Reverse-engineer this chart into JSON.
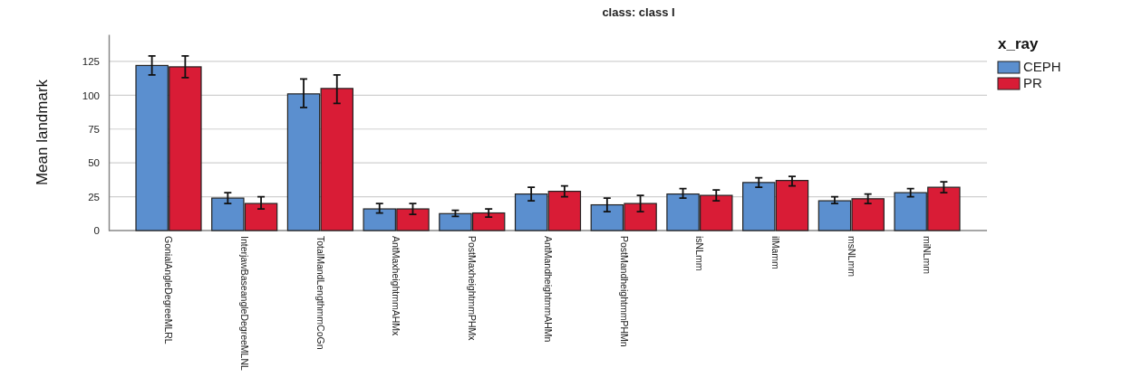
{
  "chart_data": {
    "type": "bar",
    "title": "class: class I",
    "ylabel": "Mean landmark",
    "legend_title": "x_ray",
    "legend": "right",
    "categories": [
      "GonialAngleDegreeMLRL",
      "InterjawBaseangleDegreeMLNL",
      "TotalMandLengthmmCoGn",
      "AntMaxheightmmAHMx",
      "PostMaxheightmmPHMx",
      "AntMandheightmmAHMn",
      "PostMandheightmmPHMn",
      "isNLmm",
      "ilMamm",
      "msNLmm",
      "miNLmm"
    ],
    "series": [
      {
        "name": "CEPH",
        "color": "#5b8fcf",
        "values": [
          122,
          24,
          101,
          16,
          12.5,
          27,
          19,
          27,
          35.5,
          22,
          28
        ],
        "errors": [
          [
            115,
            129
          ],
          [
            20,
            28
          ],
          [
            91,
            112
          ],
          [
            13,
            20
          ],
          [
            10.5,
            15
          ],
          [
            22,
            32
          ],
          [
            14,
            24
          ],
          [
            24,
            31
          ],
          [
            32,
            39
          ],
          [
            20,
            25
          ],
          [
            25,
            31
          ]
        ]
      },
      {
        "name": "PR",
        "color": "#d91c36",
        "values": [
          121,
          20,
          105,
          16,
          13,
          29,
          20,
          26,
          37,
          23.5,
          32
        ],
        "errors": [
          [
            113,
            129
          ],
          [
            16,
            25
          ],
          [
            94,
            115
          ],
          [
            12,
            20
          ],
          [
            10,
            16
          ],
          [
            25,
            33
          ],
          [
            14,
            26
          ],
          [
            22,
            30
          ],
          [
            33,
            40
          ],
          [
            20,
            27
          ],
          [
            28,
            36
          ]
        ]
      }
    ],
    "ylim": [
      0,
      145
    ],
    "yticks": [
      0,
      25,
      50,
      75,
      100,
      125
    ],
    "grid": "y"
  }
}
